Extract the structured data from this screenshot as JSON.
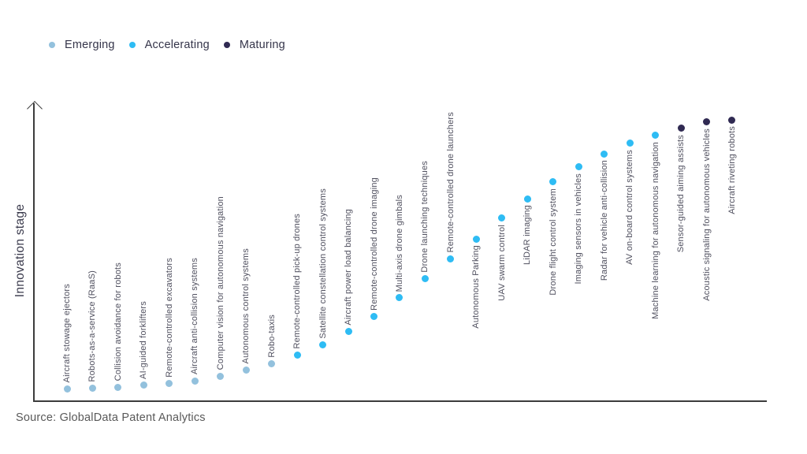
{
  "legend": {
    "items": [
      {
        "label": "Emerging",
        "color": "#93c1dd"
      },
      {
        "label": "Accelerating",
        "color": "#2ebcf4"
      },
      {
        "label": "Maturing",
        "color": "#302a52"
      }
    ]
  },
  "y_axis": {
    "title": "Innovation stage"
  },
  "source": "Source: GlobalData Patent Analytics",
  "chart_data": {
    "type": "scatter",
    "title": "",
    "xlabel": "",
    "ylabel": "Innovation stage",
    "ylim": [
      0,
      100
    ],
    "grid": false,
    "legend_position": "top-left",
    "stages": {
      "Emerging": "#93c1dd",
      "Accelerating": "#2ebcf4",
      "Maturing": "#302a52"
    },
    "points": [
      {
        "label": "Aircraft stowage ejectors",
        "stage": "Emerging",
        "value": 4.0,
        "label_below": false
      },
      {
        "label": "Robots-as-a-service (RaaS)",
        "stage": "Emerging",
        "value": 4.3,
        "label_below": false
      },
      {
        "label": "Collision avoidance for robots",
        "stage": "Emerging",
        "value": 4.7,
        "label_below": false
      },
      {
        "label": "AI-guided forklifters",
        "stage": "Emerging",
        "value": 5.3,
        "label_below": false
      },
      {
        "label": "Remote-controlled excavators",
        "stage": "Emerging",
        "value": 5.8,
        "label_below": false
      },
      {
        "label": "Aircraft anti-collision systems",
        "stage": "Emerging",
        "value": 6.8,
        "label_below": false
      },
      {
        "label": "Computer vision for autonomous navigation",
        "stage": "Emerging",
        "value": 8.2,
        "label_below": false
      },
      {
        "label": "Autonomous control systems",
        "stage": "Emerging",
        "value": 10.3,
        "label_below": false
      },
      {
        "label": "Robo-taxis",
        "stage": "Emerging",
        "value": 12.4,
        "label_below": false
      },
      {
        "label": "Remote-controlled pick-up drones",
        "stage": "Accelerating",
        "value": 15.5,
        "label_below": false
      },
      {
        "label": "Satellite constellation control systems",
        "stage": "Accelerating",
        "value": 18.9,
        "label_below": false
      },
      {
        "label": "Aircraft power load balancing",
        "stage": "Accelerating",
        "value": 23.2,
        "label_below": false
      },
      {
        "label": "Remote-controlled drone imaging",
        "stage": "Accelerating",
        "value": 28.2,
        "label_below": false
      },
      {
        "label": "Multi-axis drone gimbals",
        "stage": "Accelerating",
        "value": 34.5,
        "label_below": false
      },
      {
        "label": "Drone launching techniques",
        "stage": "Accelerating",
        "value": 40.8,
        "label_below": false
      },
      {
        "label": "Remote-controlled drone launchers",
        "stage": "Accelerating",
        "value": 47.4,
        "label_below": false
      },
      {
        "label": "Autonomous Parking",
        "stage": "Accelerating",
        "value": 54.2,
        "label_below": true
      },
      {
        "label": "UAV swarm control",
        "stage": "Accelerating",
        "value": 61.1,
        "label_below": true
      },
      {
        "label": "LiDAR imaging",
        "stage": "Accelerating",
        "value": 67.6,
        "label_below": true
      },
      {
        "label": "Drone flight control system",
        "stage": "Accelerating",
        "value": 73.2,
        "label_below": true
      },
      {
        "label": "Imaging sensors in vehicles",
        "stage": "Accelerating",
        "value": 78.2,
        "label_below": true
      },
      {
        "label": "Radar for vehicle anti-collision",
        "stage": "Accelerating",
        "value": 82.6,
        "label_below": true
      },
      {
        "label": "AV on-board control systems",
        "stage": "Accelerating",
        "value": 86.1,
        "label_below": true
      },
      {
        "label": "Machine learning for autonomous navigation",
        "stage": "Accelerating",
        "value": 88.7,
        "label_below": true
      },
      {
        "label": "Sensor-guided aiming assists",
        "stage": "Maturing",
        "value": 91.1,
        "label_below": true
      },
      {
        "label": "Acoustic signaling for autonomous vehicles",
        "stage": "Maturing",
        "value": 93.2,
        "label_below": true
      },
      {
        "label": "Aircraft riveting robots",
        "stage": "Maturing",
        "value": 93.9,
        "label_below": true
      }
    ]
  }
}
